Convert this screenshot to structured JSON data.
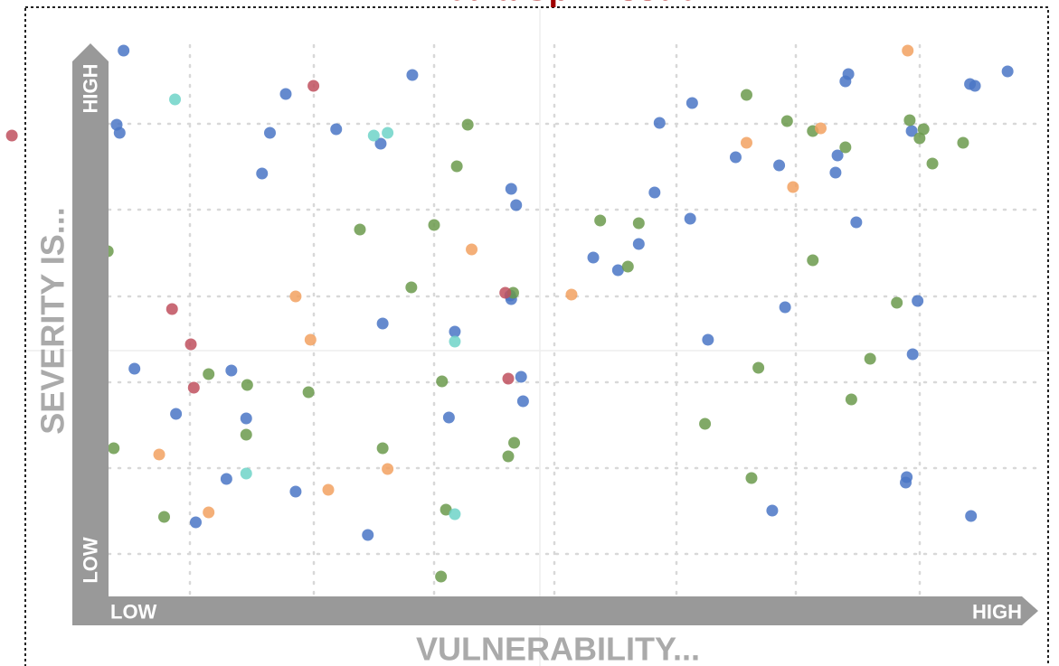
{
  "title": "Media Spin Issue",
  "chart_data": {
    "type": "scatter",
    "y_axis_label": "SEVERITY IS...",
    "x_axis_label": "VULNERABILITY...",
    "y_high_label": "HIGH",
    "y_low_label": "LOW",
    "x_low_label": "LOW",
    "x_high_label": "HIGH",
    "xlim": [
      0,
      107.1
    ],
    "ylim": [
      0,
      70
    ],
    "series": [
      {
        "color": "#4a76c6",
        "x": [
          12.5,
          11.8,
          12.1,
          28.9,
          27.3,
          26.5,
          34,
          38.5,
          41.7,
          51.7,
          52.2,
          13.6,
          23.4,
          17.8,
          24.9,
          22.9,
          29.9,
          19.8,
          37.2,
          38.7,
          46,
          45.4,
          51.7,
          52.7,
          52.9,
          66.7,
          70,
          66.2,
          69.8,
          64.6,
          60,
          62.5,
          74.4,
          78.8,
          85.5,
          85.8,
          84.7,
          84.5,
          86.6,
          92.2,
          98.1,
          98.6,
          101.9,
          79.4,
          71.6,
          92.8,
          92.3,
          91.7,
          91.6,
          78.1,
          98.2,
          51.6
        ],
        "y": [
          64.4,
          56.2,
          55.3,
          59.6,
          55.3,
          50.8,
          55.7,
          54.1,
          61.7,
          49.1,
          47.3,
          29.2,
          29,
          24.2,
          23.7,
          17,
          15.6,
          12.2,
          10.8,
          34.2,
          33.3,
          23.8,
          36.9,
          28.3,
          25.6,
          56.4,
          58.6,
          48.7,
          45.8,
          43,
          41.5,
          40.1,
          52.6,
          51.7,
          61,
          61.8,
          52.8,
          50.9,
          45.4,
          55.5,
          60.7,
          60.5,
          62.1,
          36,
          32.4,
          36.7,
          30.8,
          17.2,
          16.6,
          13.5,
          12.9,
          37.3
        ]
      },
      {
        "color": "#6b9a4c",
        "x": [
          47.3,
          46.2,
          43.9,
          36.4,
          10.9,
          41.6,
          21.1,
          25,
          31.2,
          44.7,
          24.9,
          38.7,
          11.5,
          16.6,
          45.1,
          44.6,
          52,
          51.4,
          51.9,
          60.7,
          64.6,
          63.5,
          75.5,
          79.6,
          82.2,
          85.5,
          92,
          93.4,
          93,
          94.3,
          97.4,
          82.2,
          90.7,
          88,
          76.7,
          86.1,
          71.3,
          76
        ],
        "y": [
          56.2,
          51.6,
          45.1,
          44.6,
          42.2,
          38.2,
          28.6,
          27.4,
          26.6,
          27.8,
          21.9,
          20.4,
          20.4,
          12.8,
          13.6,
          6.2,
          21,
          19.5,
          37.6,
          45.6,
          45.3,
          40.5,
          59.5,
          56.6,
          55.5,
          53.7,
          56.7,
          55.7,
          54.7,
          51.9,
          54.2,
          41.2,
          36.5,
          30.3,
          29.3,
          25.8,
          23.1,
          17.1
        ]
      },
      {
        "color": "#f2a160",
        "x": [
          91.8,
          75.5,
          83,
          80.2,
          47.7,
          57.8,
          29.9,
          31.4,
          16.1,
          39.2,
          33.2,
          21.1
        ],
        "y": [
          64.4,
          54.2,
          55.8,
          49.3,
          42.4,
          37.4,
          37.2,
          32.4,
          19.7,
          18.1,
          15.8,
          13.3
        ]
      },
      {
        "color": "#c0505e",
        "x": [
          1.2,
          31.7,
          17.4,
          19.3,
          19.6,
          51.1,
          51.4
        ],
        "y": [
          55,
          60.5,
          35.8,
          31.9,
          27.1,
          37.6,
          28.1
        ]
      },
      {
        "color": "#6fd4c8",
        "x": [
          9.8,
          17.7,
          37.8,
          39.2,
          46,
          24.9,
          46
        ],
        "y": [
          63.4,
          59,
          55,
          55.3,
          32.2,
          17.6,
          13.1
        ]
      }
    ]
  }
}
